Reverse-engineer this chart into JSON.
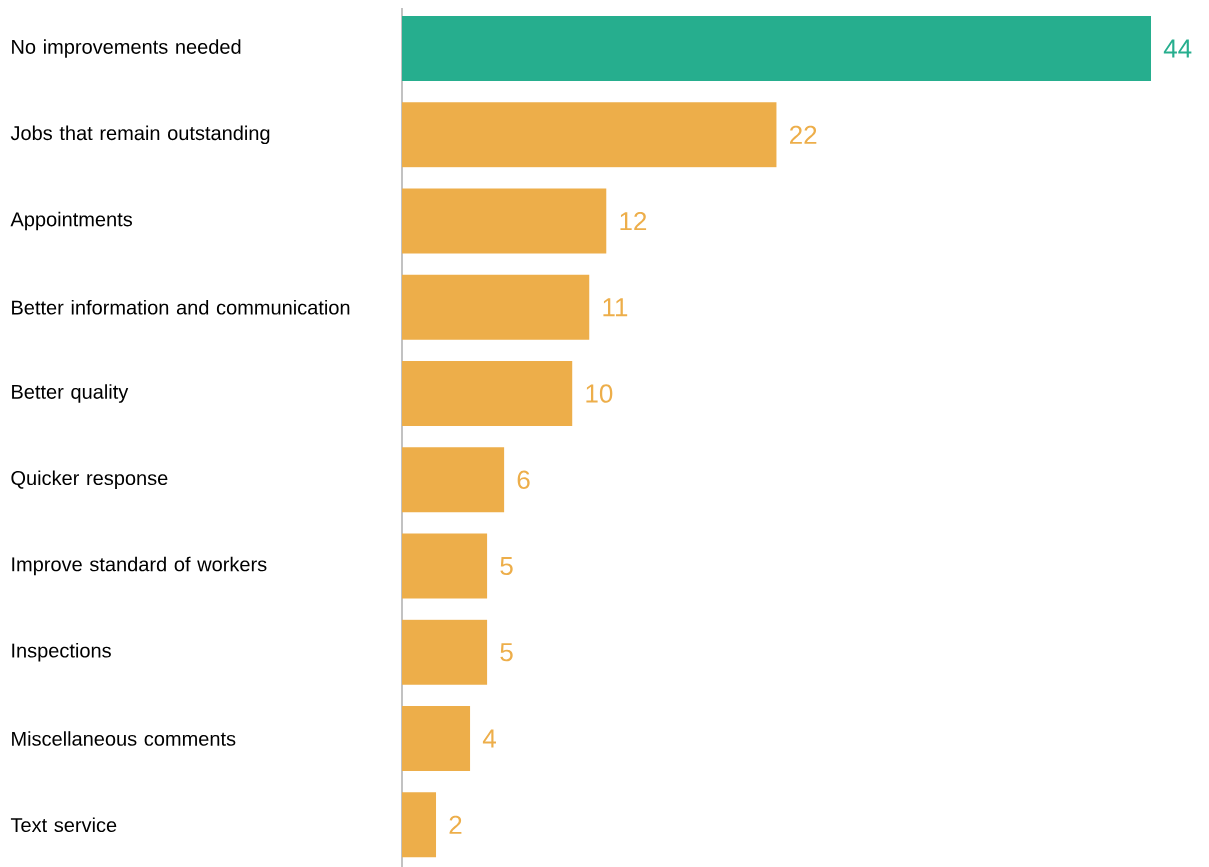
{
  "chart_data": {
    "type": "bar",
    "orientation": "horizontal",
    "data_labels": true,
    "categories": [
      "No improvements needed",
      "Jobs that remain outstanding",
      "Appointments",
      "Better information and communication",
      "Better quality",
      "Quicker response",
      "Improve standard of workers",
      "Inspections",
      "Miscellaneous comments",
      "Text service"
    ],
    "values": [
      44,
      22,
      12,
      11,
      10,
      6,
      5,
      5,
      4,
      2
    ],
    "colors": [
      "#26ae8e",
      "#edae4a",
      "#edae4a",
      "#edae4a",
      "#edae4a",
      "#edae4a",
      "#edae4a",
      "#edae4a",
      "#edae4a",
      "#edae4a"
    ]
  }
}
